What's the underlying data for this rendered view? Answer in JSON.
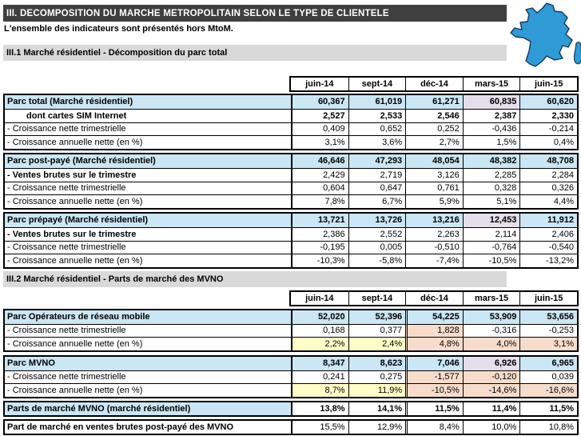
{
  "header": {
    "title": "III. DECOMPOSITION DU MARCHE METROPOLITAIN SELON LE TYPE DE CLIENTELE",
    "subtitle": "L'ensemble des indicateurs sont présentés hors MtoM."
  },
  "colors": {
    "title_bar_bg": "#3F3F3F",
    "section_bar_bg": "#D9D9D9",
    "cell_blue": "#CBE6F4",
    "cell_lavender": "#E4DFEA",
    "cell_yellow": "#FFFFC8",
    "cell_salmon": "#F8DCCB",
    "map_fill": "#2E9BD6",
    "map_stroke": "#17375E"
  },
  "icons": {
    "france_map": "france-map-icon"
  },
  "sections": [
    {
      "label": "III.1 Marché résidentiel - Décomposition du parc total",
      "columns": [
        "juin-14",
        "sept-14",
        "déc-14",
        "mars-15",
        "juin-15"
      ],
      "blocks": [
        {
          "rows": [
            {
              "label": "Parc total  (Marché résidentiel)",
              "style": "parc",
              "vbold": true,
              "values": [
                "60,367",
                "61,019",
                "61,271",
                "60,835",
                "60,620"
              ],
              "bg": [
                "b",
                "b",
                "b",
                "l",
                "b"
              ]
            },
            {
              "label": "dont cartes SIM Internet",
              "style": "sub",
              "vbold": true,
              "values": [
                "2,527",
                "2,533",
                "2,546",
                "2,387",
                "2,330"
              ]
            },
            {
              "label": "- Croissance nette trimestrielle",
              "values": [
                "0,409",
                "0,652",
                "0,252",
                "-0,436",
                "-0,214"
              ]
            },
            {
              "label": "- Croissance annuelle nette (en %)",
              "values": [
                "3,1%",
                "3,6%",
                "2,7%",
                "1,5%",
                "0,4%"
              ]
            }
          ]
        },
        {
          "rows": [
            {
              "label": "Parc post-payé  (Marché résidentiel)",
              "style": "parc",
              "vbold": true,
              "values": [
                "46,646",
                "47,293",
                "48,054",
                "48,382",
                "48,708"
              ],
              "bg": [
                "b",
                "b",
                "b",
                "b",
                "b"
              ]
            },
            {
              "label": "- Ventes brutes sur le trimestre",
              "style": "bold",
              "values": [
                "2,429",
                "2,719",
                "3,126",
                "2,285",
                "2,284"
              ]
            },
            {
              "label": "- Croissance nette trimestrielle",
              "values": [
                "0,604",
                "0,647",
                "0,761",
                "0,328",
                "0,326"
              ]
            },
            {
              "label": "- Croissance annuelle nette (en %)",
              "values": [
                "7,8%",
                "6,7%",
                "5,9%",
                "5,1%",
                "4,4%"
              ]
            }
          ]
        },
        {
          "rows": [
            {
              "label": "Parc prépayé  (Marché résidentiel)",
              "style": "parc",
              "vbold": true,
              "values": [
                "13,721",
                "13,726",
                "13,216",
                "12,453",
                "11,912"
              ],
              "bg": [
                "b",
                "b",
                "b",
                "l",
                "b"
              ]
            },
            {
              "label": "- Ventes brutes sur le trimestre",
              "style": "bold",
              "values": [
                "2,386",
                "2,552",
                "2,263",
                "2,114",
                "2,406"
              ]
            },
            {
              "label": "- Croissance nette trimestrielle",
              "values": [
                "-0,195",
                "0,005",
                "-0,510",
                "-0,764",
                "-0,540"
              ]
            },
            {
              "label": "- Croissance annuelle nette (en %)",
              "values": [
                "-10,3%",
                "-5,8%",
                "-7,4%",
                "-10,5%",
                "-13,2%"
              ]
            }
          ]
        }
      ]
    },
    {
      "label": "III.2 Marché résidentiel - Parts de marché des MVNO",
      "columns": [
        "juin-14",
        "sept-14",
        "déc-14",
        "mars-15",
        "juin-15"
      ],
      "divider_col": 2,
      "blocks": [
        {
          "rows": [
            {
              "label": "Parc Opérateurs de réseau mobile",
              "style": "parc",
              "vbold": true,
              "values": [
                "52,020",
                "52,396",
                "54,225",
                "53,909",
                "53,656"
              ],
              "bg": [
                "b",
                "b",
                "b",
                "b",
                "b"
              ]
            },
            {
              "label": "- Croissance nette trimestrielle",
              "values": [
                "0,168",
                "0,377",
                "1,828",
                "-0,316",
                "-0,253"
              ],
              "bg": [
                "w",
                "w",
                "s",
                "w",
                "w"
              ]
            },
            {
              "label": "- Croissance annuelle nette (en %)",
              "values": [
                "2,2%",
                "2,4%",
                "4,8%",
                "4,0%",
                "3,1%"
              ],
              "bg": [
                "y",
                "y",
                "s",
                "s",
                "s"
              ]
            }
          ]
        },
        {
          "rows": [
            {
              "label": "Parc MVNO",
              "style": "parc",
              "vbold": true,
              "values": [
                "8,347",
                "8,623",
                "7,046",
                "6,926",
                "6,965"
              ],
              "bg": [
                "b",
                "b",
                "b",
                "l",
                "b"
              ]
            },
            {
              "label": "- Croissance nette trimestrielle",
              "values": [
                "0,241",
                "0,275",
                "-1,577",
                "-0,120",
                "0,039"
              ],
              "bg": [
                "w",
                "w",
                "s",
                "s",
                "w"
              ]
            },
            {
              "label": "- Croissance annuelle nette (en %)",
              "values": [
                "8,7%",
                "11,9%",
                "-10,5%",
                "-14,6%",
                "-16,6%"
              ],
              "bg": [
                "y",
                "y",
                "s",
                "s",
                "s"
              ]
            }
          ]
        },
        {
          "rows": [
            {
              "label": "Parts de marché MVNO (marché résidentiel)",
              "style": "parc",
              "vbold": true,
              "values": [
                "13,8%",
                "14,1%",
                "11,5%",
                "11,4%",
                "11,5%"
              ]
            }
          ]
        },
        {
          "rows": [
            {
              "label": "Part de marché en ventes brutes post-payé des MVNO",
              "style": "bold",
              "values": [
                "15,5%",
                "12,9%",
                "8,4%",
                "10,0%",
                "10,8%"
              ]
            }
          ]
        }
      ]
    }
  ]
}
